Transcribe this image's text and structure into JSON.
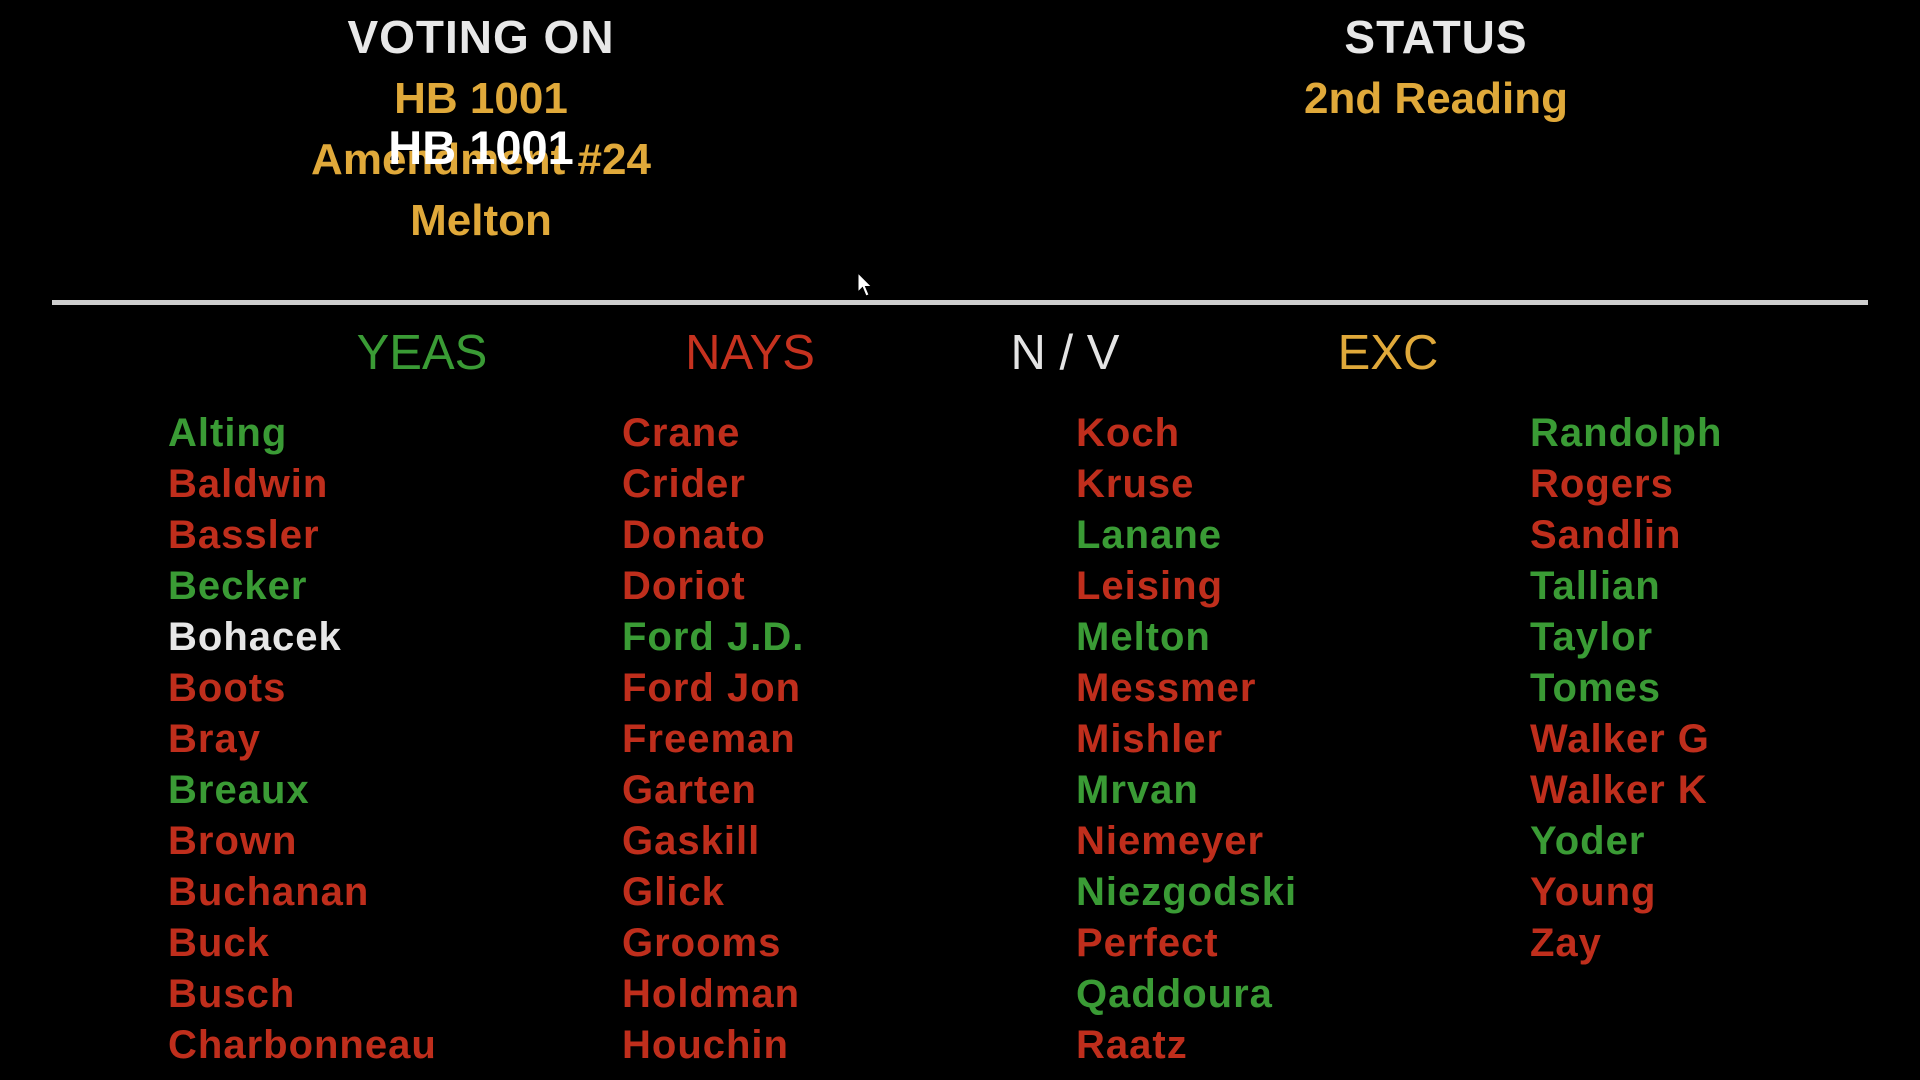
{
  "header": {
    "voting_on_label": "VOTING ON",
    "bill_lines": [
      "HB 1001",
      "Amendment #24",
      "Melton"
    ],
    "bill_overlay": "HB 1001",
    "status_label": "STATUS",
    "status_value": "2nd Reading"
  },
  "column_headers": {
    "yeas": "YEAS",
    "nays": "NAYS",
    "nv": "N / V",
    "exc": "EXC"
  },
  "colors": {
    "yea": "#3a9b35",
    "nay": "#bf2e1c",
    "nv": "#e6e6e6",
    "header_gold": "#e0a93a"
  },
  "roster": [
    [
      {
        "name": "Alting",
        "vote": "yea"
      },
      {
        "name": "Baldwin",
        "vote": "nay"
      },
      {
        "name": "Bassler",
        "vote": "nay"
      },
      {
        "name": "Becker",
        "vote": "yea"
      },
      {
        "name": "Bohacek",
        "vote": "nv"
      },
      {
        "name": "Boots",
        "vote": "nay"
      },
      {
        "name": "Bray",
        "vote": "nay"
      },
      {
        "name": "Breaux",
        "vote": "yea"
      },
      {
        "name": "Brown",
        "vote": "nay"
      },
      {
        "name": "Buchanan",
        "vote": "nay"
      },
      {
        "name": "Buck",
        "vote": "nay"
      },
      {
        "name": "Busch",
        "vote": "nay"
      },
      {
        "name": "Charbonneau",
        "vote": "nay"
      }
    ],
    [
      {
        "name": "Crane",
        "vote": "nay"
      },
      {
        "name": "Crider",
        "vote": "nay"
      },
      {
        "name": "Donato",
        "vote": "nay"
      },
      {
        "name": "Doriot",
        "vote": "nay"
      },
      {
        "name": "Ford J.D.",
        "vote": "yea"
      },
      {
        "name": "Ford Jon",
        "vote": "nay"
      },
      {
        "name": "Freeman",
        "vote": "nay"
      },
      {
        "name": "Garten",
        "vote": "nay"
      },
      {
        "name": "Gaskill",
        "vote": "nay"
      },
      {
        "name": "Glick",
        "vote": "nay"
      },
      {
        "name": "Grooms",
        "vote": "nay"
      },
      {
        "name": "Holdman",
        "vote": "nay"
      },
      {
        "name": "Houchin",
        "vote": "nay"
      }
    ],
    [
      {
        "name": "Koch",
        "vote": "nay"
      },
      {
        "name": "Kruse",
        "vote": "nay"
      },
      {
        "name": "Lanane",
        "vote": "yea"
      },
      {
        "name": "Leising",
        "vote": "nay"
      },
      {
        "name": "Melton",
        "vote": "yea"
      },
      {
        "name": "Messmer",
        "vote": "nay"
      },
      {
        "name": "Mishler",
        "vote": "nay"
      },
      {
        "name": "Mrvan",
        "vote": "yea"
      },
      {
        "name": "Niemeyer",
        "vote": "nay"
      },
      {
        "name": "Niezgodski",
        "vote": "yea"
      },
      {
        "name": "Perfect",
        "vote": "nay"
      },
      {
        "name": "Qaddoura",
        "vote": "yea"
      },
      {
        "name": "Raatz",
        "vote": "nay"
      }
    ],
    [
      {
        "name": "Randolph",
        "vote": "yea"
      },
      {
        "name": "Rogers",
        "vote": "nay"
      },
      {
        "name": "Sandlin",
        "vote": "nay"
      },
      {
        "name": "Tallian",
        "vote": "yea"
      },
      {
        "name": "Taylor",
        "vote": "yea"
      },
      {
        "name": "Tomes",
        "vote": "yea"
      },
      {
        "name": "Walker G",
        "vote": "nay"
      },
      {
        "name": "Walker K",
        "vote": "nay"
      },
      {
        "name": "Yoder",
        "vote": "yea"
      },
      {
        "name": "Young",
        "vote": "nay"
      },
      {
        "name": "Zay",
        "vote": "nay"
      }
    ]
  ],
  "icons": {
    "cursor": "mouse-pointer-icon"
  }
}
